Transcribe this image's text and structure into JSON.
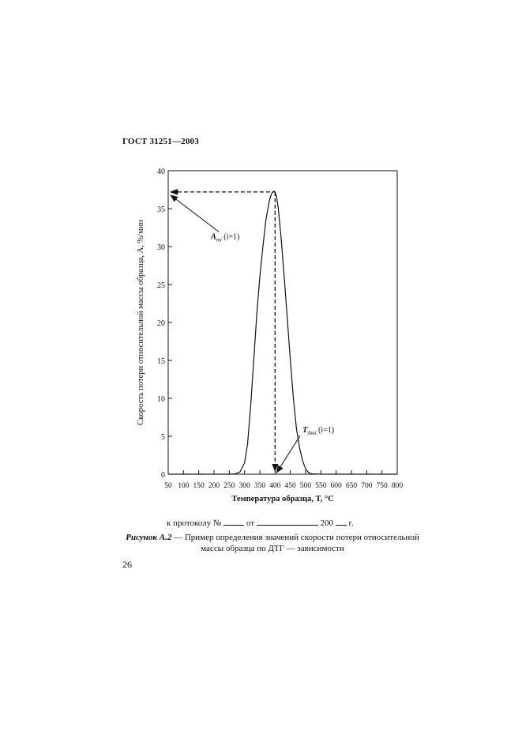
{
  "header": {
    "doc_id": "ГОСТ 31251—2003"
  },
  "chart_data": {
    "type": "line",
    "xlabel": "Температура образца, T, °C",
    "ylabel": "Скорость потери относительной массы образца, A, %/мин",
    "xlim": [
      50,
      800
    ],
    "ylim": [
      0,
      40
    ],
    "x_ticks": [
      50,
      100,
      150,
      200,
      250,
      300,
      350,
      400,
      450,
      500,
      550,
      600,
      650,
      700,
      750,
      800
    ],
    "y_ticks": [
      0,
      5,
      10,
      15,
      20,
      25,
      30,
      35,
      40
    ],
    "grid": false,
    "series": [
      {
        "x": [
          50,
          100,
          150,
          200,
          250,
          270,
          285,
          300,
          310,
          320,
          330,
          340,
          350,
          360,
          370,
          380,
          385,
          390,
          395,
          400,
          405,
          410,
          420,
          430,
          440,
          450,
          460,
          470,
          480,
          490,
          500,
          510,
          520,
          550,
          600,
          650,
          700,
          750,
          800
        ],
        "y": [
          0,
          0,
          0,
          0,
          0,
          0.05,
          0.3,
          1.5,
          4,
          9,
          15,
          21,
          26,
          30,
          33.5,
          35.8,
          36.6,
          37.1,
          37.3,
          37.2,
          36.5,
          35.2,
          31,
          26,
          20.5,
          15,
          10,
          6,
          3.5,
          1.8,
          0.7,
          0.2,
          0.05,
          0,
          0,
          0,
          0,
          0,
          0
        ]
      }
    ],
    "annotations": [
      {
        "label_main": "A",
        "label_sub": "mi",
        "label_suffix": " (i=1)",
        "target_x": 50,
        "target_y": 37.2,
        "text_x": 190,
        "text_y": 31
      },
      {
        "label_main": "T",
        "label_sub": "Ami",
        "label_suffix": " (i=1)",
        "target_x": 400,
        "target_y": 0,
        "text_x": 490,
        "text_y": 5.5
      }
    ],
    "reference_lines": {
      "peak_x": 400,
      "peak_y": 37.2
    }
  },
  "protocol": {
    "prefix": "к протоколу №",
    "from_word": "от",
    "year": "200",
    "year_suffix": "г."
  },
  "caption": {
    "label": "Рисунок А.2",
    "text": " — Пример определения значений скорости потери относительной массы образца по ДТГ — зависимости"
  },
  "footer": {
    "page_number": "26"
  }
}
